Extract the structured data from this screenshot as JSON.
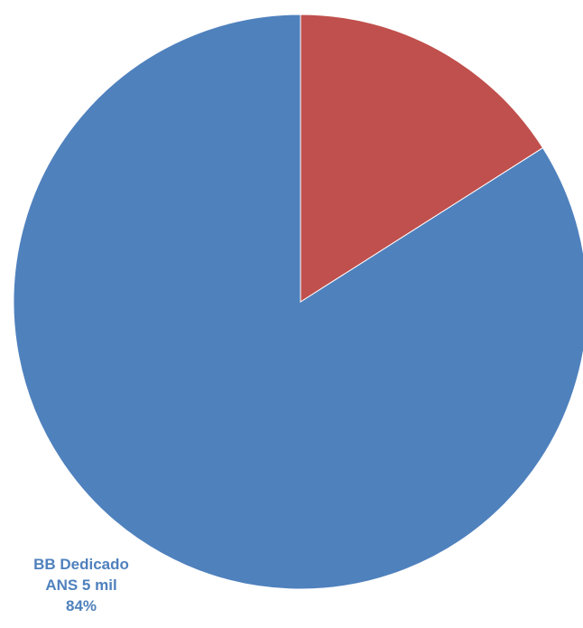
{
  "chart_data": {
    "type": "pie",
    "title": "",
    "slices": [
      {
        "name": "BB Dedicado ANS 5 mil",
        "value": 84,
        "percent_label": "84%",
        "color": "#4F81BD",
        "label_lines": [
          "BB Dedicado",
          "ANS 5 mil",
          "84%"
        ]
      },
      {
        "name": "",
        "value": 16,
        "color": "#C0504D",
        "label_lines": []
      }
    ],
    "start_angle_deg": 0,
    "direction": "clockwise",
    "legend": "none"
  }
}
